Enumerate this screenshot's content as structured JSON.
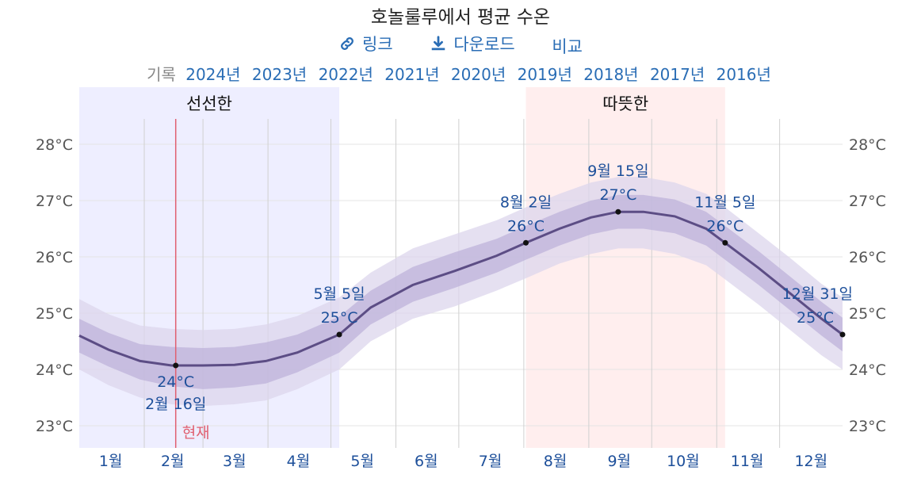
{
  "title": "호놀룰루에서 평균 수온",
  "toolbar": {
    "link_label": "링크",
    "download_label": "다운로드",
    "compare_label": "비교"
  },
  "years": {
    "label": "기록",
    "items": [
      "2024년",
      "2023년",
      "2022년",
      "2021년",
      "2020년",
      "2019년",
      "2018년",
      "2017년",
      "2016년"
    ]
  },
  "colors": {
    "cool_region": "#eeeeff",
    "warm_region": "#ffeeee",
    "line": "#5c4d85",
    "band_inner": "#bdb3d9",
    "band_outer": "#dcd6ec",
    "now_line": "#e06070",
    "link": "#2a6db5"
  },
  "chart_data": {
    "type": "line",
    "y_unit": "°C",
    "ylim": [
      22.6,
      28.8
    ],
    "y_ticks": [
      "23°C",
      "24°C",
      "25°C",
      "26°C",
      "27°C",
      "28°C"
    ],
    "y_tick_values": [
      23,
      24,
      25,
      26,
      27,
      28
    ],
    "months": [
      "1월",
      "2월",
      "3월",
      "4월",
      "5월",
      "6월",
      "7월",
      "8월",
      "9월",
      "10월",
      "11월",
      "12월"
    ],
    "regions": [
      {
        "label": "선선한",
        "start_day": 1,
        "end_day": 125
      },
      {
        "label": "따뜻한",
        "start_day": 214,
        "end_day": 309
      }
    ],
    "series": [
      {
        "day": [
          1,
          15,
          30,
          45,
          60,
          75,
          90,
          105,
          125,
          140,
          160,
          180,
          200,
          214,
          230,
          245,
          258,
          270,
          285,
          300,
          309,
          325,
          340,
          355,
          365
        ],
        "avg": [
          24.6,
          24.35,
          24.15,
          24.07,
          24.07,
          24.08,
          24.15,
          24.3,
          24.62,
          25.1,
          25.5,
          25.75,
          26.02,
          26.25,
          26.5,
          26.7,
          26.8,
          26.8,
          26.72,
          26.5,
          26.25,
          25.8,
          25.35,
          24.9,
          24.62
        ],
        "p25": [
          24.3,
          24.05,
          23.82,
          23.7,
          23.65,
          23.68,
          23.75,
          23.95,
          24.3,
          24.8,
          25.2,
          25.45,
          25.72,
          25.95,
          26.2,
          26.4,
          26.5,
          26.5,
          26.42,
          26.2,
          25.95,
          25.5,
          25.05,
          24.6,
          24.32
        ],
        "p75": [
          24.9,
          24.65,
          24.45,
          24.4,
          24.38,
          24.4,
          24.48,
          24.62,
          24.94,
          25.4,
          25.82,
          26.08,
          26.32,
          26.55,
          26.8,
          27.0,
          27.1,
          27.1,
          27.02,
          26.8,
          26.55,
          26.1,
          25.65,
          25.2,
          24.92
        ],
        "p10": [
          24.0,
          23.72,
          23.5,
          23.38,
          23.35,
          23.38,
          23.45,
          23.65,
          24.0,
          24.5,
          24.9,
          25.12,
          25.4,
          25.62,
          25.88,
          26.05,
          26.15,
          26.15,
          26.05,
          25.85,
          25.6,
          25.15,
          24.7,
          24.25,
          24.0
        ],
        "p90": [
          25.25,
          24.98,
          24.78,
          24.72,
          24.7,
          24.72,
          24.8,
          24.95,
          25.28,
          25.72,
          26.15,
          26.4,
          26.65,
          26.88,
          27.12,
          27.32,
          27.42,
          27.42,
          27.32,
          27.12,
          26.88,
          26.42,
          25.98,
          25.52,
          25.28
        ]
      }
    ],
    "annotations": [
      {
        "day": 47,
        "value": 24.07,
        "date": "2월 16일",
        "temp": "24°C",
        "position": "below"
      },
      {
        "day": 125,
        "value": 24.62,
        "date": "5월 5일",
        "temp": "25°C",
        "position": "above"
      },
      {
        "day": 214,
        "value": 26.25,
        "date": "8월 2일",
        "temp": "26°C",
        "position": "above"
      },
      {
        "day": 258,
        "value": 26.8,
        "date": "9월 15일",
        "temp": "27°C",
        "position": "above"
      },
      {
        "day": 309,
        "value": 26.25,
        "date": "11월 5일",
        "temp": "26°C",
        "position": "above"
      },
      {
        "day": 365,
        "value": 24.62,
        "date": "12월 31일",
        "temp": "25°C",
        "position": "above"
      }
    ],
    "now": {
      "day": 47,
      "label": "현재"
    }
  }
}
